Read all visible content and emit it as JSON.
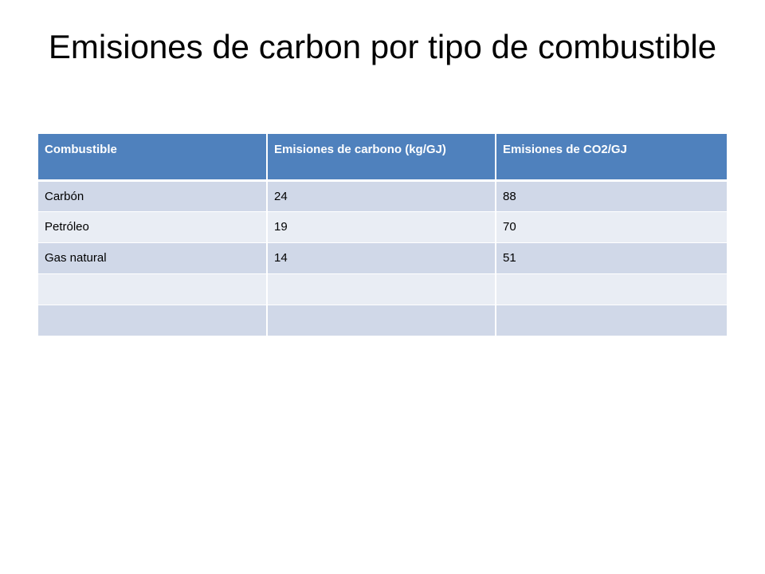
{
  "slide": {
    "title": "Emisiones de carbon por tipo de combustible"
  },
  "table": {
    "headers": [
      "Combustible",
      "Emisiones de carbono (kg/GJ)",
      "Emisiones de CO2/GJ"
    ],
    "rows": [
      [
        "Carbón",
        "24",
        "88"
      ],
      [
        "Petróleo",
        "19",
        "70"
      ],
      [
        "Gas natural",
        "14",
        "51"
      ],
      [
        "",
        "",
        ""
      ],
      [
        "",
        "",
        ""
      ]
    ]
  },
  "colors": {
    "header_bg": "#4f81bd",
    "header_text": "#ffffff",
    "row_dark": "#d0d8e8",
    "row_light": "#e9edf4"
  }
}
